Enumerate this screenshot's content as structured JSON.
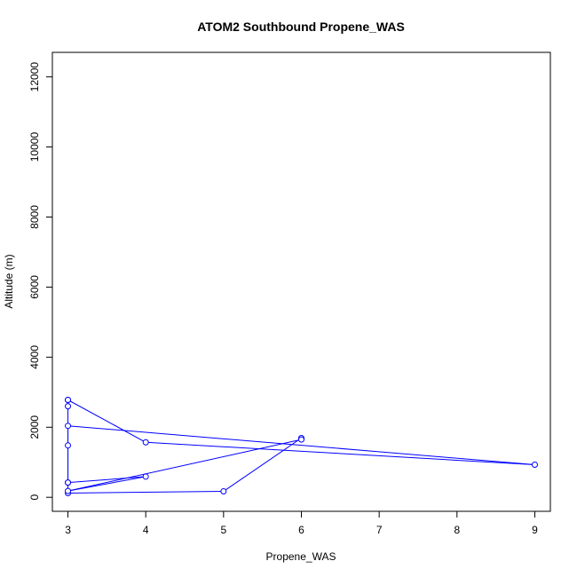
{
  "chart_data": {
    "type": "line",
    "title": "ATOM2 Southbound Propene_WAS",
    "xlabel": "Propene_WAS",
    "ylabel": "Altitude (m)",
    "xlim": [
      2.8,
      9.2
    ],
    "ylim": [
      -400,
      12700
    ],
    "x_ticks": [
      3,
      4,
      5,
      6,
      7,
      8,
      9
    ],
    "y_ticks": [
      0,
      2000,
      4000,
      6000,
      8000,
      10000,
      12000
    ],
    "grid": false,
    "legend": "none",
    "series": [
      {
        "color": "#0000ff",
        "marker": "open-circle",
        "points": [
          {
            "x": 3,
            "y": 2780
          },
          {
            "x": 3,
            "y": 2600
          },
          {
            "x": 3,
            "y": 1480
          },
          {
            "x": 3,
            "y": 420
          },
          {
            "x": 3,
            "y": 120
          },
          {
            "x": 5,
            "y": 170
          },
          {
            "x": 6,
            "y": 1690
          },
          {
            "x": 6,
            "y": 1650
          },
          {
            "x": 3,
            "y": 180
          },
          {
            "x": 4,
            "y": 590
          },
          {
            "x": 3,
            "y": 420
          },
          {
            "x": 3,
            "y": 2040
          },
          {
            "x": 9,
            "y": 930
          },
          {
            "x": 4,
            "y": 1570
          },
          {
            "x": 3,
            "y": 2780
          }
        ]
      }
    ]
  }
}
